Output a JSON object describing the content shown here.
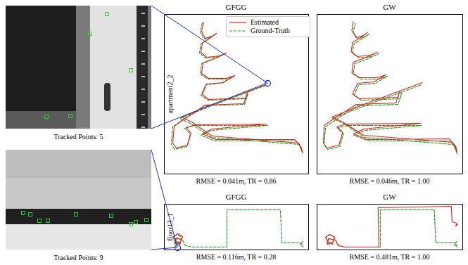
{
  "chart_data": [
    {
      "type": "line",
      "title": "GFGG",
      "ylabel": "apartment2_2",
      "caption": "RMSE = 0.041m, TR = 0.86",
      "xlim": [
        0,
        205
      ],
      "ylim": [
        0,
        227
      ],
      "tick_labels": false,
      "legend": "top right",
      "failure_marker": [
        147,
        129
      ],
      "series": [
        {
          "name": "Estimated",
          "color": "#e8201c",
          "line_style": "solid",
          "points": [
            [
              56,
              216
            ],
            [
              53,
              203
            ],
            [
              58,
              193
            ],
            [
              68,
              196
            ],
            [
              74,
              200
            ],
            [
              64,
              193
            ],
            [
              54,
              186
            ],
            [
              52,
              173
            ],
            [
              60,
              166
            ],
            [
              78,
              168
            ],
            [
              88,
              172
            ],
            [
              68,
              163
            ],
            [
              55,
              158
            ],
            [
              53,
              143
            ],
            [
              63,
              136
            ],
            [
              88,
              136
            ],
            [
              100,
              140
            ],
            [
              83,
              130
            ],
            [
              60,
              128
            ],
            [
              54,
              113
            ],
            [
              63,
              106
            ],
            [
              116,
              108
            ],
            [
              118,
              116
            ],
            [
              113,
              100
            ],
            [
              58,
              98
            ],
            [
              44,
              88
            ],
            [
              31,
              80
            ],
            [
              21,
              73
            ],
            [
              14,
              68
            ],
            [
              12,
              44
            ],
            [
              17,
              37
            ],
            [
              33,
              41
            ],
            [
              38,
              58
            ],
            [
              31,
              66
            ],
            [
              44,
              70
            ],
            [
              145,
              71
            ],
            [
              68,
              64
            ],
            [
              54,
              57
            ],
            [
              73,
              49
            ],
            [
              185,
              49
            ],
            [
              194,
              39
            ],
            [
              196,
              31
            ],
            [
              191,
              44
            ],
            [
              68,
              54
            ],
            [
              39,
              74
            ],
            [
              24,
              81
            ],
            [
              68,
              99
            ],
            [
              147,
              128
            ]
          ]
        },
        {
          "name": "Ground-Truth",
          "color": "#1a9a1a",
          "line_style": "dashed",
          "points": [
            [
              54,
              215
            ],
            [
              51,
              202
            ],
            [
              57,
              192
            ],
            [
              67,
              195
            ],
            [
              73,
              199
            ],
            [
              63,
              192
            ],
            [
              52,
              185
            ],
            [
              50,
              172
            ],
            [
              59,
              165
            ],
            [
              77,
              167
            ],
            [
              87,
              171
            ],
            [
              67,
              162
            ],
            [
              53,
              157
            ],
            [
              51,
              142
            ],
            [
              62,
              135
            ],
            [
              87,
              135
            ],
            [
              99,
              139
            ],
            [
              82,
              129
            ],
            [
              59,
              127
            ],
            [
              52,
              112
            ],
            [
              62,
              105
            ],
            [
              117,
              107
            ],
            [
              119,
              115
            ],
            [
              114,
              99
            ],
            [
              57,
              97
            ],
            [
              42,
              87
            ],
            [
              29,
              79
            ],
            [
              19,
              72
            ],
            [
              12,
              67
            ],
            [
              10,
              42
            ],
            [
              15,
              35
            ],
            [
              32,
              39
            ],
            [
              37,
              57
            ],
            [
              29,
              65
            ],
            [
              42,
              69
            ],
            [
              147,
              69
            ],
            [
              67,
              62
            ],
            [
              52,
              55
            ],
            [
              72,
              47
            ],
            [
              187,
              47
            ],
            [
              195,
              37
            ],
            [
              197,
              29
            ],
            [
              192,
              42
            ],
            [
              67,
              52
            ],
            [
              37,
              72
            ],
            [
              22,
              79
            ],
            [
              67,
              97
            ],
            [
              147,
              127
            ]
          ]
        }
      ]
    },
    {
      "type": "line",
      "title": "GW",
      "caption": "RMSE = 0.046m, TR = 1.00",
      "xlim": [
        0,
        205
      ],
      "ylim": [
        0,
        227
      ],
      "tick_labels": false,
      "series": [
        {
          "name": "Estimated",
          "color": "#e8201c",
          "line_style": "solid",
          "points": [
            [
              51,
              217
            ],
            [
              49,
              204
            ],
            [
              55,
              194
            ],
            [
              65,
              197
            ],
            [
              71,
              201
            ],
            [
              61,
              194
            ],
            [
              50,
              187
            ],
            [
              48,
              174
            ],
            [
              57,
              167
            ],
            [
              75,
              169
            ],
            [
              85,
              173
            ],
            [
              65,
              164
            ],
            [
              51,
              159
            ],
            [
              49,
              144
            ],
            [
              60,
              137
            ],
            [
              85,
              137
            ],
            [
              97,
              141
            ],
            [
              80,
              131
            ],
            [
              57,
              129
            ],
            [
              50,
              114
            ],
            [
              60,
              107
            ],
            [
              114,
              109
            ],
            [
              116,
              117
            ],
            [
              111,
              101
            ],
            [
              55,
              99
            ],
            [
              40,
              89
            ],
            [
              27,
              81
            ],
            [
              17,
              74
            ],
            [
              10,
              69
            ],
            [
              9,
              44
            ],
            [
              14,
              37
            ],
            [
              31,
              41
            ],
            [
              36,
              59
            ],
            [
              28,
              67
            ],
            [
              41,
              71
            ],
            [
              146,
              72
            ],
            [
              66,
              64
            ],
            [
              51,
              57
            ],
            [
              71,
              49
            ],
            [
              186,
              50
            ],
            [
              195,
              40
            ],
            [
              197,
              32
            ],
            [
              191,
              45
            ],
            [
              66,
              55
            ],
            [
              36,
              74
            ],
            [
              21,
              81
            ],
            [
              66,
              99
            ],
            [
              148,
              130
            ]
          ]
        },
        {
          "name": "Ground-Truth",
          "color": "#1a9a1a",
          "line_style": "dashed",
          "points": [
            [
              54,
              215
            ],
            [
              51,
              202
            ],
            [
              57,
              192
            ],
            [
              67,
              195
            ],
            [
              73,
              199
            ],
            [
              63,
              192
            ],
            [
              52,
              185
            ],
            [
              50,
              172
            ],
            [
              59,
              165
            ],
            [
              77,
              167
            ],
            [
              87,
              171
            ],
            [
              67,
              162
            ],
            [
              53,
              157
            ],
            [
              51,
              142
            ],
            [
              62,
              135
            ],
            [
              87,
              135
            ],
            [
              99,
              139
            ],
            [
              82,
              129
            ],
            [
              59,
              127
            ],
            [
              52,
              112
            ],
            [
              62,
              105
            ],
            [
              117,
              107
            ],
            [
              119,
              115
            ],
            [
              114,
              99
            ],
            [
              57,
              97
            ],
            [
              42,
              87
            ],
            [
              29,
              79
            ],
            [
              19,
              72
            ],
            [
              12,
              67
            ],
            [
              10,
              42
            ],
            [
              15,
              35
            ],
            [
              32,
              39
            ],
            [
              37,
              57
            ],
            [
              29,
              65
            ],
            [
              42,
              69
            ],
            [
              147,
              69
            ],
            [
              67,
              62
            ],
            [
              52,
              55
            ],
            [
              72,
              47
            ],
            [
              187,
              47
            ],
            [
              195,
              37
            ],
            [
              197,
              29
            ],
            [
              192,
              42
            ],
            [
              67,
              52
            ],
            [
              37,
              72
            ],
            [
              22,
              79
            ],
            [
              67,
              97
            ],
            [
              147,
              127
            ]
          ]
        }
      ]
    },
    {
      "type": "line",
      "title": "GFGG",
      "ylabel": "floor13_1",
      "caption": "RMSE = 0.116m, TR = 0.28",
      "xlim": [
        0,
        205
      ],
      "ylim": [
        0,
        65
      ],
      "tick_labels": false,
      "failure_marker": [
        19,
        3
      ],
      "series": [
        {
          "name": "Estimated",
          "color": "#e8201c",
          "line_style": "solid",
          "points": [
            [
              23,
              9
            ],
            [
              16,
              13
            ],
            [
              13,
              19
            ],
            [
              19,
              23
            ],
            [
              26,
              19
            ],
            [
              23,
              11
            ],
            [
              15,
              9
            ],
            [
              17,
              17
            ],
            [
              25,
              15
            ],
            [
              19,
              4
            ]
          ]
        },
        {
          "name": "Ground-Truth",
          "color": "#1a9a1a",
          "line_style": "dashed",
          "points": [
            [
              22,
              8
            ],
            [
              15,
              12
            ],
            [
              12,
              18
            ],
            [
              18,
              22
            ],
            [
              25,
              18
            ],
            [
              22,
              10
            ],
            [
              14,
              8
            ],
            [
              16,
              16
            ],
            [
              26,
              14
            ],
            [
              30,
              6
            ],
            [
              40,
              4
            ],
            [
              89,
              4
            ],
            [
              89,
              57
            ],
            [
              165,
              57
            ],
            [
              167,
              10
            ],
            [
              195,
              10
            ],
            [
              197,
              4
            ],
            [
              193,
              8
            ],
            [
              197,
              12
            ]
          ]
        }
      ]
    },
    {
      "type": "line",
      "title": "GW",
      "caption": "RMSE = 0.481m, TR = 1.00",
      "xlim": [
        0,
        205
      ],
      "ylim": [
        0,
        65
      ],
      "tick_labels": false,
      "series": [
        {
          "name": "Estimated",
          "color": "#e8201c",
          "line_style": "solid",
          "points": [
            [
              22,
              8
            ],
            [
              15,
              12
            ],
            [
              12,
              18
            ],
            [
              18,
              22
            ],
            [
              25,
              18
            ],
            [
              22,
              10
            ],
            [
              14,
              8
            ],
            [
              16,
              16
            ],
            [
              26,
              14
            ],
            [
              30,
              6
            ],
            [
              40,
              4
            ],
            [
              87,
              4
            ],
            [
              86,
              60
            ],
            [
              189,
              62
            ],
            [
              190,
              40
            ],
            [
              197,
              38
            ],
            [
              195,
              34
            ],
            [
              198,
              36
            ]
          ]
        },
        {
          "name": "Ground-Truth",
          "color": "#1a9a1a",
          "line_style": "dashed",
          "points": [
            [
              22,
              8
            ],
            [
              15,
              12
            ],
            [
              12,
              18
            ],
            [
              18,
              22
            ],
            [
              25,
              18
            ],
            [
              22,
              10
            ],
            [
              14,
              8
            ],
            [
              16,
              16
            ],
            [
              26,
              14
            ],
            [
              30,
              6
            ],
            [
              40,
              4
            ],
            [
              89,
              4
            ],
            [
              89,
              57
            ],
            [
              165,
              57
            ],
            [
              167,
              10
            ],
            [
              195,
              10
            ],
            [
              197,
              4
            ],
            [
              193,
              8
            ],
            [
              197,
              12
            ]
          ]
        }
      ]
    }
  ],
  "images": [
    {
      "caption": "Tracked Points: 5",
      "points": [
        [
          120,
          40
        ],
        [
          58,
          158
        ],
        [
          92,
          157
        ],
        [
          144,
          12
        ],
        [
          178,
          92
        ]
      ]
    },
    {
      "caption": "Tracked Points: 9",
      "points": [
        [
          25,
          90
        ],
        [
          35,
          92
        ],
        [
          48,
          101
        ],
        [
          60,
          101
        ],
        [
          100,
          92
        ],
        [
          150,
          94
        ],
        [
          178,
          106
        ],
        [
          185,
          103
        ],
        [
          200,
          100
        ]
      ]
    }
  ]
}
